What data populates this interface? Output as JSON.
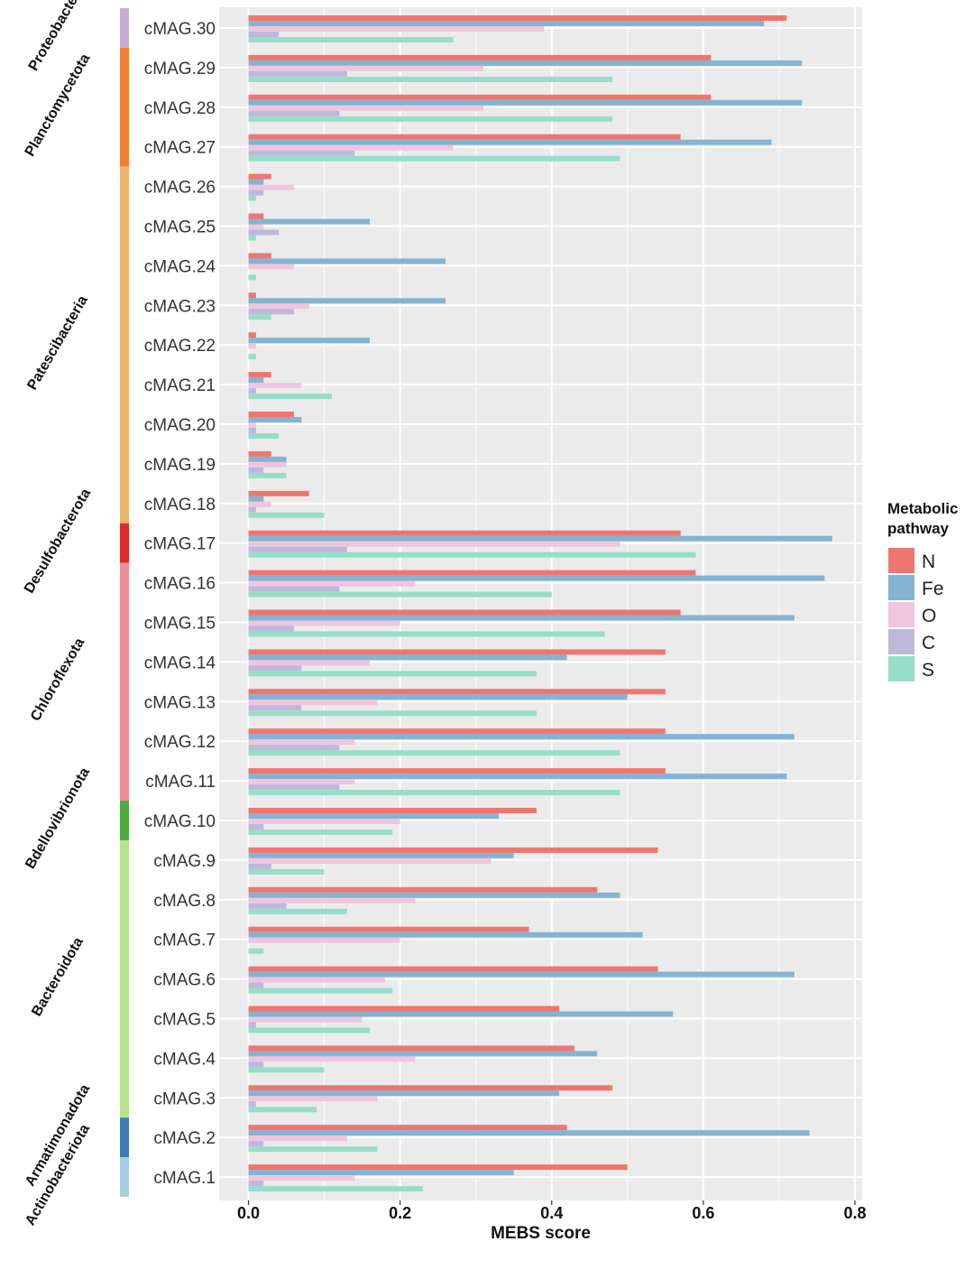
{
  "chart_data": {
    "type": "bar",
    "orientation": "horizontal",
    "title": "",
    "xlabel": "MEBS score",
    "ylabel": "",
    "xlim": [
      -0.048,
      0.81
    ],
    "xticks": [
      "0.0",
      "0.2",
      "0.4",
      "0.6",
      "0.8"
    ],
    "grid": true,
    "legend": {
      "title": "Metabolic pathway",
      "position": "right",
      "entries": [
        "N",
        "Fe",
        "O",
        "C",
        "S"
      ]
    },
    "series_colors": {
      "N": "#EF7670",
      "Fe": "#85B3D3",
      "O": "#EFC5DF",
      "C": "#BEB9DA",
      "S": "#96DEC9"
    },
    "categories": [
      "cMAG.30",
      "cMAG.29",
      "cMAG.28",
      "cMAG.27",
      "cMAG.26",
      "cMAG.25",
      "cMAG.24",
      "cMAG.23",
      "cMAG.22",
      "cMAG.21",
      "cMAG.20",
      "cMAG.19",
      "cMAG.18",
      "cMAG.17",
      "cMAG.16",
      "cMAG.15",
      "cMAG.14",
      "cMAG.13",
      "cMAG.12",
      "cMAG.11",
      "cMAG.10",
      "cMAG.9",
      "cMAG.8",
      "cMAG.7",
      "cMAG.6",
      "cMAG.5",
      "cMAG.4",
      "cMAG.3",
      "cMAG.2",
      "cMAG.1"
    ],
    "series": [
      {
        "name": "N",
        "values": [
          0.71,
          0.61,
          0.61,
          0.57,
          0.03,
          0.02,
          0.03,
          0.01,
          0.01,
          0.03,
          0.06,
          0.03,
          0.08,
          0.57,
          0.59,
          0.57,
          0.55,
          0.55,
          0.55,
          0.55,
          0.38,
          0.54,
          0.46,
          0.37,
          0.54,
          0.41,
          0.43,
          0.48,
          0.42,
          0.5
        ]
      },
      {
        "name": "Fe",
        "values": [
          0.68,
          0.73,
          0.73,
          0.69,
          0.02,
          0.16,
          0.26,
          0.26,
          0.16,
          0.02,
          0.07,
          0.05,
          0.02,
          0.77,
          0.76,
          0.72,
          0.42,
          0.5,
          0.72,
          0.71,
          0.33,
          0.35,
          0.49,
          0.52,
          0.72,
          0.56,
          0.46,
          0.41,
          0.74,
          0.35
        ]
      },
      {
        "name": "O",
        "values": [
          0.39,
          0.31,
          0.31,
          0.27,
          0.06,
          0.02,
          0.06,
          0.08,
          0.01,
          0.07,
          0.01,
          0.05,
          0.03,
          0.49,
          0.22,
          0.2,
          0.16,
          0.17,
          0.14,
          0.14,
          0.2,
          0.32,
          0.22,
          0.2,
          0.18,
          0.15,
          0.22,
          0.17,
          0.13,
          0.14
        ]
      },
      {
        "name": "C",
        "values": [
          0.04,
          0.13,
          0.12,
          0.14,
          0.02,
          0.04,
          0.0,
          0.06,
          0.0,
          0.01,
          0.01,
          0.02,
          0.01,
          0.13,
          0.12,
          0.06,
          0.07,
          0.07,
          0.12,
          0.12,
          0.02,
          0.03,
          0.05,
          0.0,
          0.02,
          0.01,
          0.02,
          0.01,
          0.02,
          0.02
        ]
      },
      {
        "name": "S",
        "values": [
          0.27,
          0.48,
          0.48,
          0.49,
          0.01,
          0.01,
          0.01,
          0.03,
          0.01,
          0.11,
          0.04,
          0.05,
          0.1,
          0.59,
          0.4,
          0.47,
          0.38,
          0.38,
          0.49,
          0.49,
          0.19,
          0.1,
          0.13,
          0.02,
          0.19,
          0.16,
          0.1,
          0.09,
          0.17,
          0.23
        ]
      }
    ],
    "phyla": [
      {
        "name": "Proteobacteria",
        "first": "cMAG.30",
        "last": "cMAG.30",
        "color": "#C3AED6"
      },
      {
        "name": "Planctomycetota",
        "first": "cMAG.29",
        "last": "cMAG.27",
        "color": "#EE7F34"
      },
      {
        "name": "Patescibacteria",
        "first": "cMAG.26",
        "last": "cMAG.18",
        "color": "#E9B56B"
      },
      {
        "name": "Desulfobacterota",
        "first": "cMAG.17",
        "last": "cMAG.17",
        "color": "#DD2C2C"
      },
      {
        "name": "Chloroflexota",
        "first": "cMAG.16",
        "last": "cMAG.11",
        "color": "#E98F95"
      },
      {
        "name": "Bdellovibrionota",
        "first": "cMAG.10",
        "last": "cMAG.10",
        "color": "#4DAD3C"
      },
      {
        "name": "Bacteroidota",
        "first": "cMAG.9",
        "last": "cMAG.3",
        "color": "#B5E48B"
      },
      {
        "name": "Armatimonadota",
        "first": "cMAG.2",
        "last": "cMAG.2",
        "color": "#3E7DB1"
      },
      {
        "name": "Actinobacteriota",
        "first": "cMAG.1",
        "last": "cMAG.1",
        "color": "#A7CEE0"
      }
    ]
  }
}
